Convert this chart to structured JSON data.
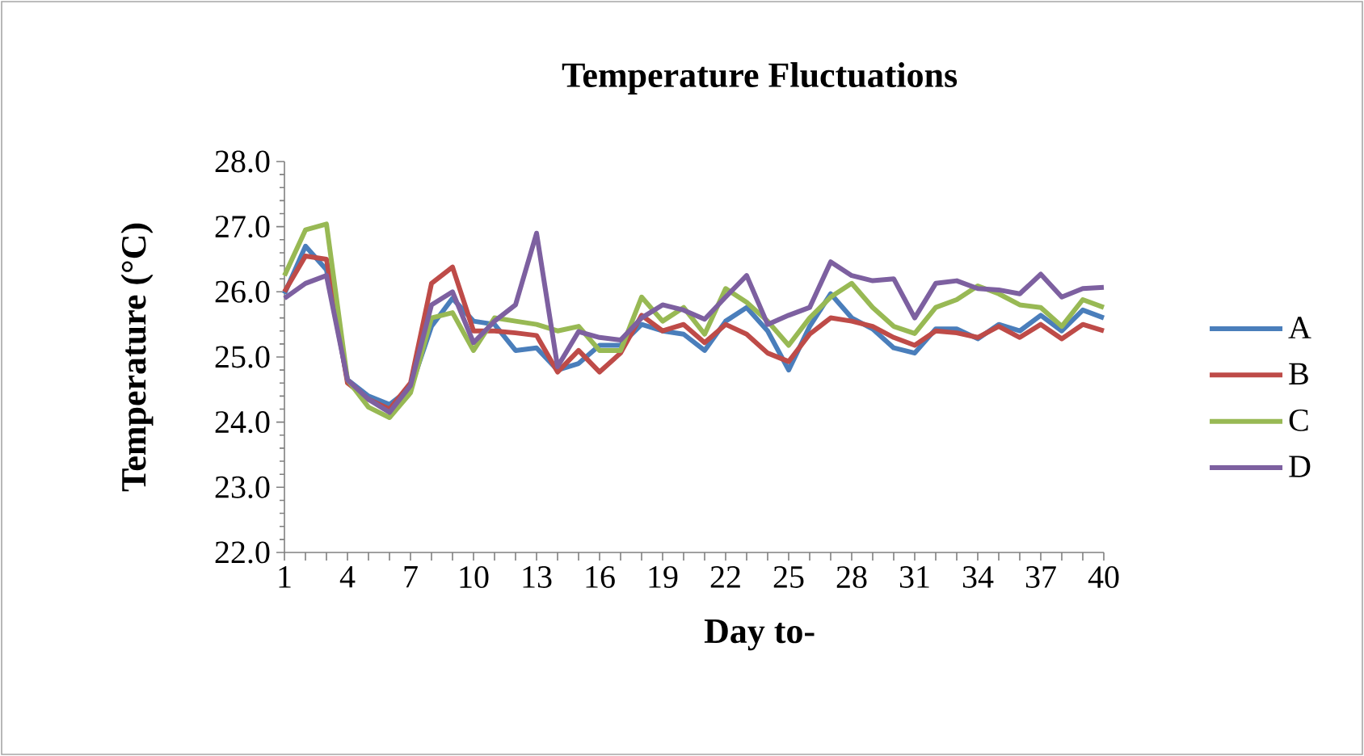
{
  "chart_data": {
    "type": "line",
    "title": "Temperature Fluctuations",
    "xlabel": "Day to-",
    "ylabel": "Temperature (°C)",
    "categories": [
      "1",
      null,
      null,
      "4",
      null,
      null,
      "7",
      null,
      null,
      "10",
      null,
      null,
      "13",
      null,
      null,
      "16",
      null,
      null,
      "19",
      null,
      null,
      "22",
      null,
      null,
      "25",
      null,
      null,
      "28",
      null,
      null,
      "31",
      null,
      null,
      "34",
      null,
      null,
      "37",
      null,
      null,
      "40"
    ],
    "series": [
      {
        "name": "A",
        "color": "#4a7ebb",
        "values": [
          25.97,
          26.7,
          26.34,
          24.65,
          24.4,
          24.27,
          24.52,
          25.47,
          25.9,
          25.55,
          25.5,
          25.1,
          25.14,
          24.8,
          24.9,
          25.18,
          25.18,
          25.5,
          25.4,
          25.35,
          25.1,
          25.55,
          25.76,
          25.4,
          24.8,
          25.47,
          25.97,
          25.6,
          25.43,
          25.14,
          25.06,
          25.43,
          25.43,
          25.28,
          25.5,
          25.4,
          25.64,
          25.4,
          25.72,
          25.6
        ]
      },
      {
        "name": "B",
        "color": "#be4b48",
        "values": [
          26.0,
          26.55,
          26.5,
          24.6,
          24.35,
          24.2,
          24.6,
          26.13,
          26.38,
          25.4,
          25.4,
          25.37,
          25.33,
          24.77,
          25.1,
          24.77,
          25.06,
          25.64,
          25.4,
          25.5,
          25.22,
          25.5,
          25.35,
          25.06,
          24.93,
          25.35,
          25.6,
          25.55,
          25.47,
          25.3,
          25.18,
          25.4,
          25.37,
          25.3,
          25.47,
          25.3,
          25.5,
          25.28,
          25.5,
          25.4
        ]
      },
      {
        "name": "C",
        "color": "#98b954",
        "values": [
          26.25,
          26.95,
          27.04,
          24.65,
          24.23,
          24.07,
          24.45,
          25.6,
          25.68,
          25.1,
          25.6,
          25.55,
          25.5,
          25.4,
          25.47,
          25.1,
          25.1,
          25.92,
          25.55,
          25.76,
          25.35,
          26.05,
          25.84,
          25.55,
          25.18,
          25.6,
          25.92,
          26.13,
          25.76,
          25.47,
          25.36,
          25.76,
          25.88,
          26.09,
          25.97,
          25.8,
          25.76,
          25.47,
          25.88,
          25.76
        ]
      },
      {
        "name": "D",
        "color": "#7d60a0",
        "values": [
          25.9,
          26.13,
          26.25,
          24.65,
          24.35,
          24.15,
          24.56,
          25.8,
          26.0,
          25.22,
          25.55,
          25.8,
          26.9,
          24.85,
          25.39,
          25.3,
          25.26,
          25.6,
          25.8,
          25.72,
          25.58,
          25.92,
          26.25,
          25.5,
          25.64,
          25.76,
          26.46,
          26.25,
          26.17,
          26.2,
          25.6,
          26.13,
          26.17,
          26.05,
          26.03,
          25.97,
          26.27,
          25.92,
          26.05,
          26.07
        ]
      }
    ],
    "ylim": [
      22,
      28
    ],
    "yticks": [
      {
        "value": 22,
        "label": "22.0"
      },
      {
        "value": 23,
        "label": "23.0"
      },
      {
        "value": 24,
        "label": "24.0"
      },
      {
        "value": 25,
        "label": "25.0"
      },
      {
        "value": 26,
        "label": "26.0"
      },
      {
        "value": 27,
        "label": "27.0"
      },
      {
        "value": 28,
        "label": "28.0"
      }
    ],
    "legend": "right",
    "marker": "none",
    "line_style": "solid"
  }
}
